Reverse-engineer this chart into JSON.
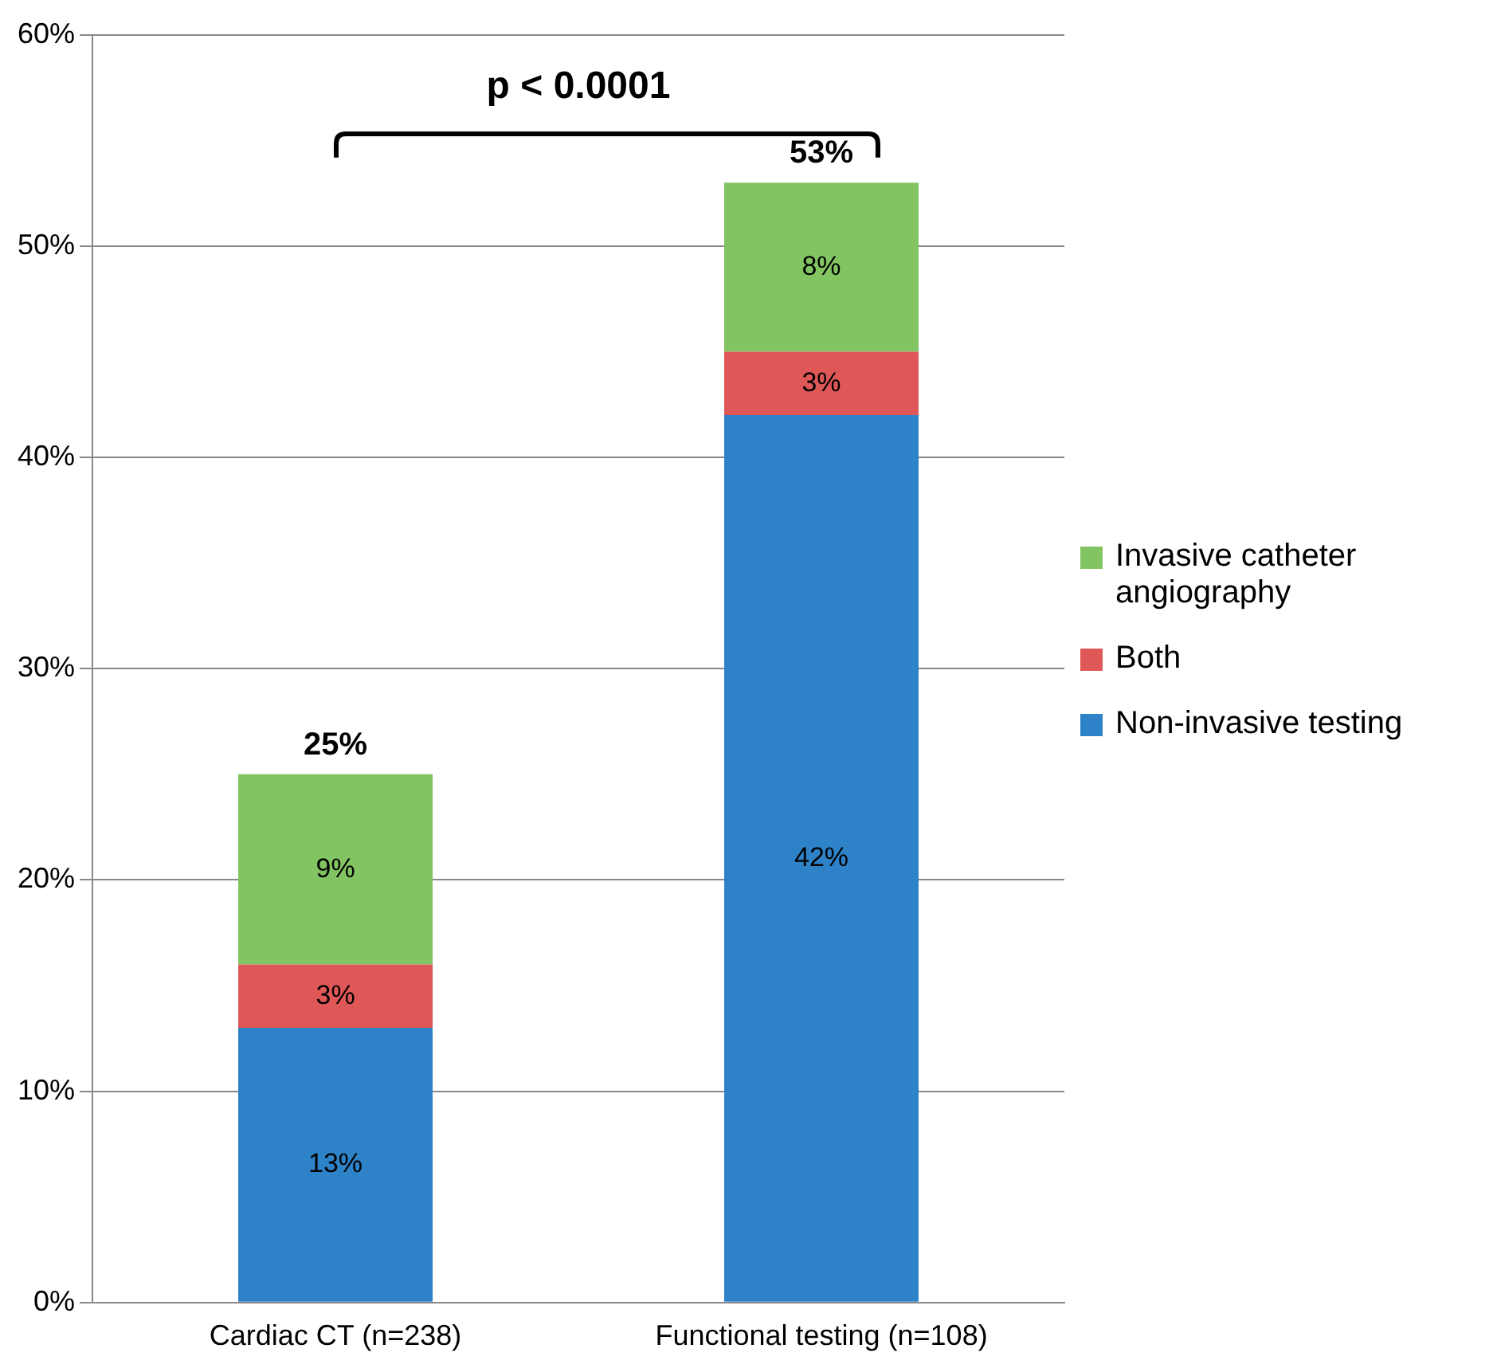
{
  "chart_data": {
    "type": "bar",
    "stacked": true,
    "categories": [
      "Cardiac CT (n=238)",
      "Functional testing (n=108)"
    ],
    "series": [
      {
        "name": "Non-invasive testing",
        "color": "#2e82c8",
        "values": [
          13,
          42
        ],
        "value_labels": [
          "13%",
          "42%"
        ]
      },
      {
        "name": "Both",
        "color": "#e05757",
        "values": [
          3,
          3
        ],
        "value_labels": [
          "3%",
          "3%"
        ]
      },
      {
        "name": "Invasive catheter angiography",
        "color": "#83c462",
        "values": [
          9,
          8
        ],
        "value_labels": [
          "9%",
          "8%"
        ]
      }
    ],
    "ylim": [
      0,
      60
    ],
    "yticks": [
      {
        "value": 0,
        "label": "0%"
      },
      {
        "value": 10,
        "label": "10%"
      },
      {
        "value": 20,
        "label": "20%"
      },
      {
        "value": 30,
        "label": "30%"
      },
      {
        "value": 40,
        "label": "40%"
      },
      {
        "value": 50,
        "label": "50%"
      },
      {
        "value": 60,
        "label": "60%"
      }
    ],
    "grid": "y",
    "legend": "right",
    "totals": [
      "25%",
      "53%"
    ],
    "annotations": [
      "p < 0.0001"
    ]
  }
}
